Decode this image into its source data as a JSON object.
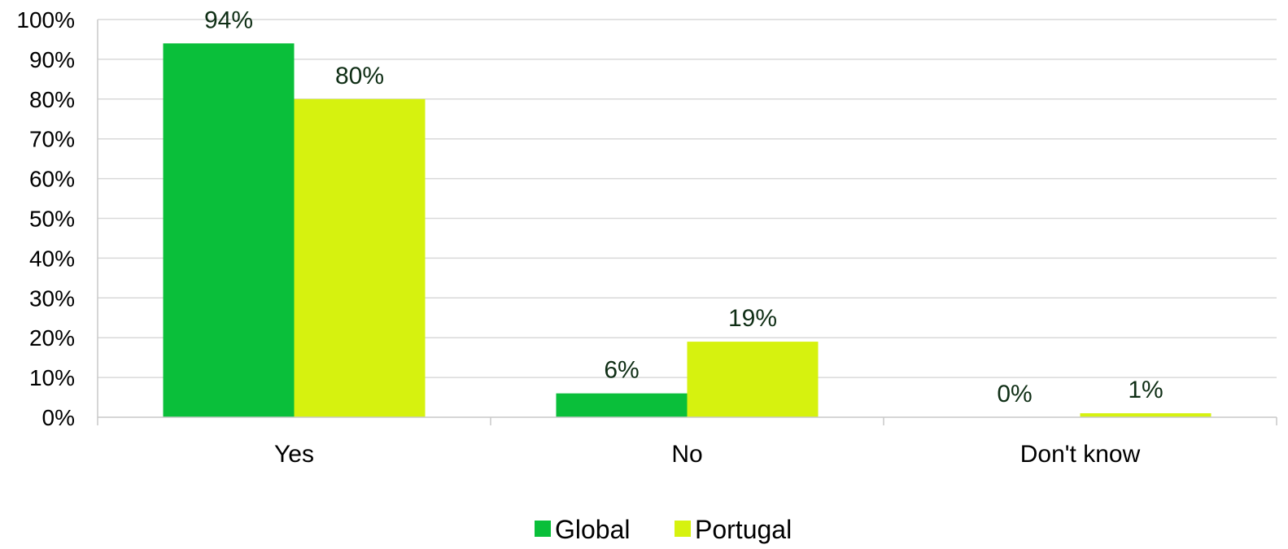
{
  "chart_data": {
    "type": "bar",
    "categories": [
      "Yes",
      "No",
      "Don't know"
    ],
    "series": [
      {
        "name": "Global",
        "values": [
          94,
          6,
          0
        ],
        "labels": [
          "94%",
          "6%",
          "0%"
        ],
        "color": "#0abf3a"
      },
      {
        "name": "Portugal",
        "values": [
          80,
          19,
          1
        ],
        "labels": [
          "80%",
          "19%",
          "1%"
        ],
        "color": "#d6f20f"
      }
    ],
    "ylim": [
      0,
      100
    ],
    "yticks": [
      "0%",
      "10%",
      "20%",
      "30%",
      "40%",
      "50%",
      "60%",
      "70%",
      "80%",
      "90%",
      "100%"
    ],
    "grid": true,
    "legend": "bottom-center"
  }
}
